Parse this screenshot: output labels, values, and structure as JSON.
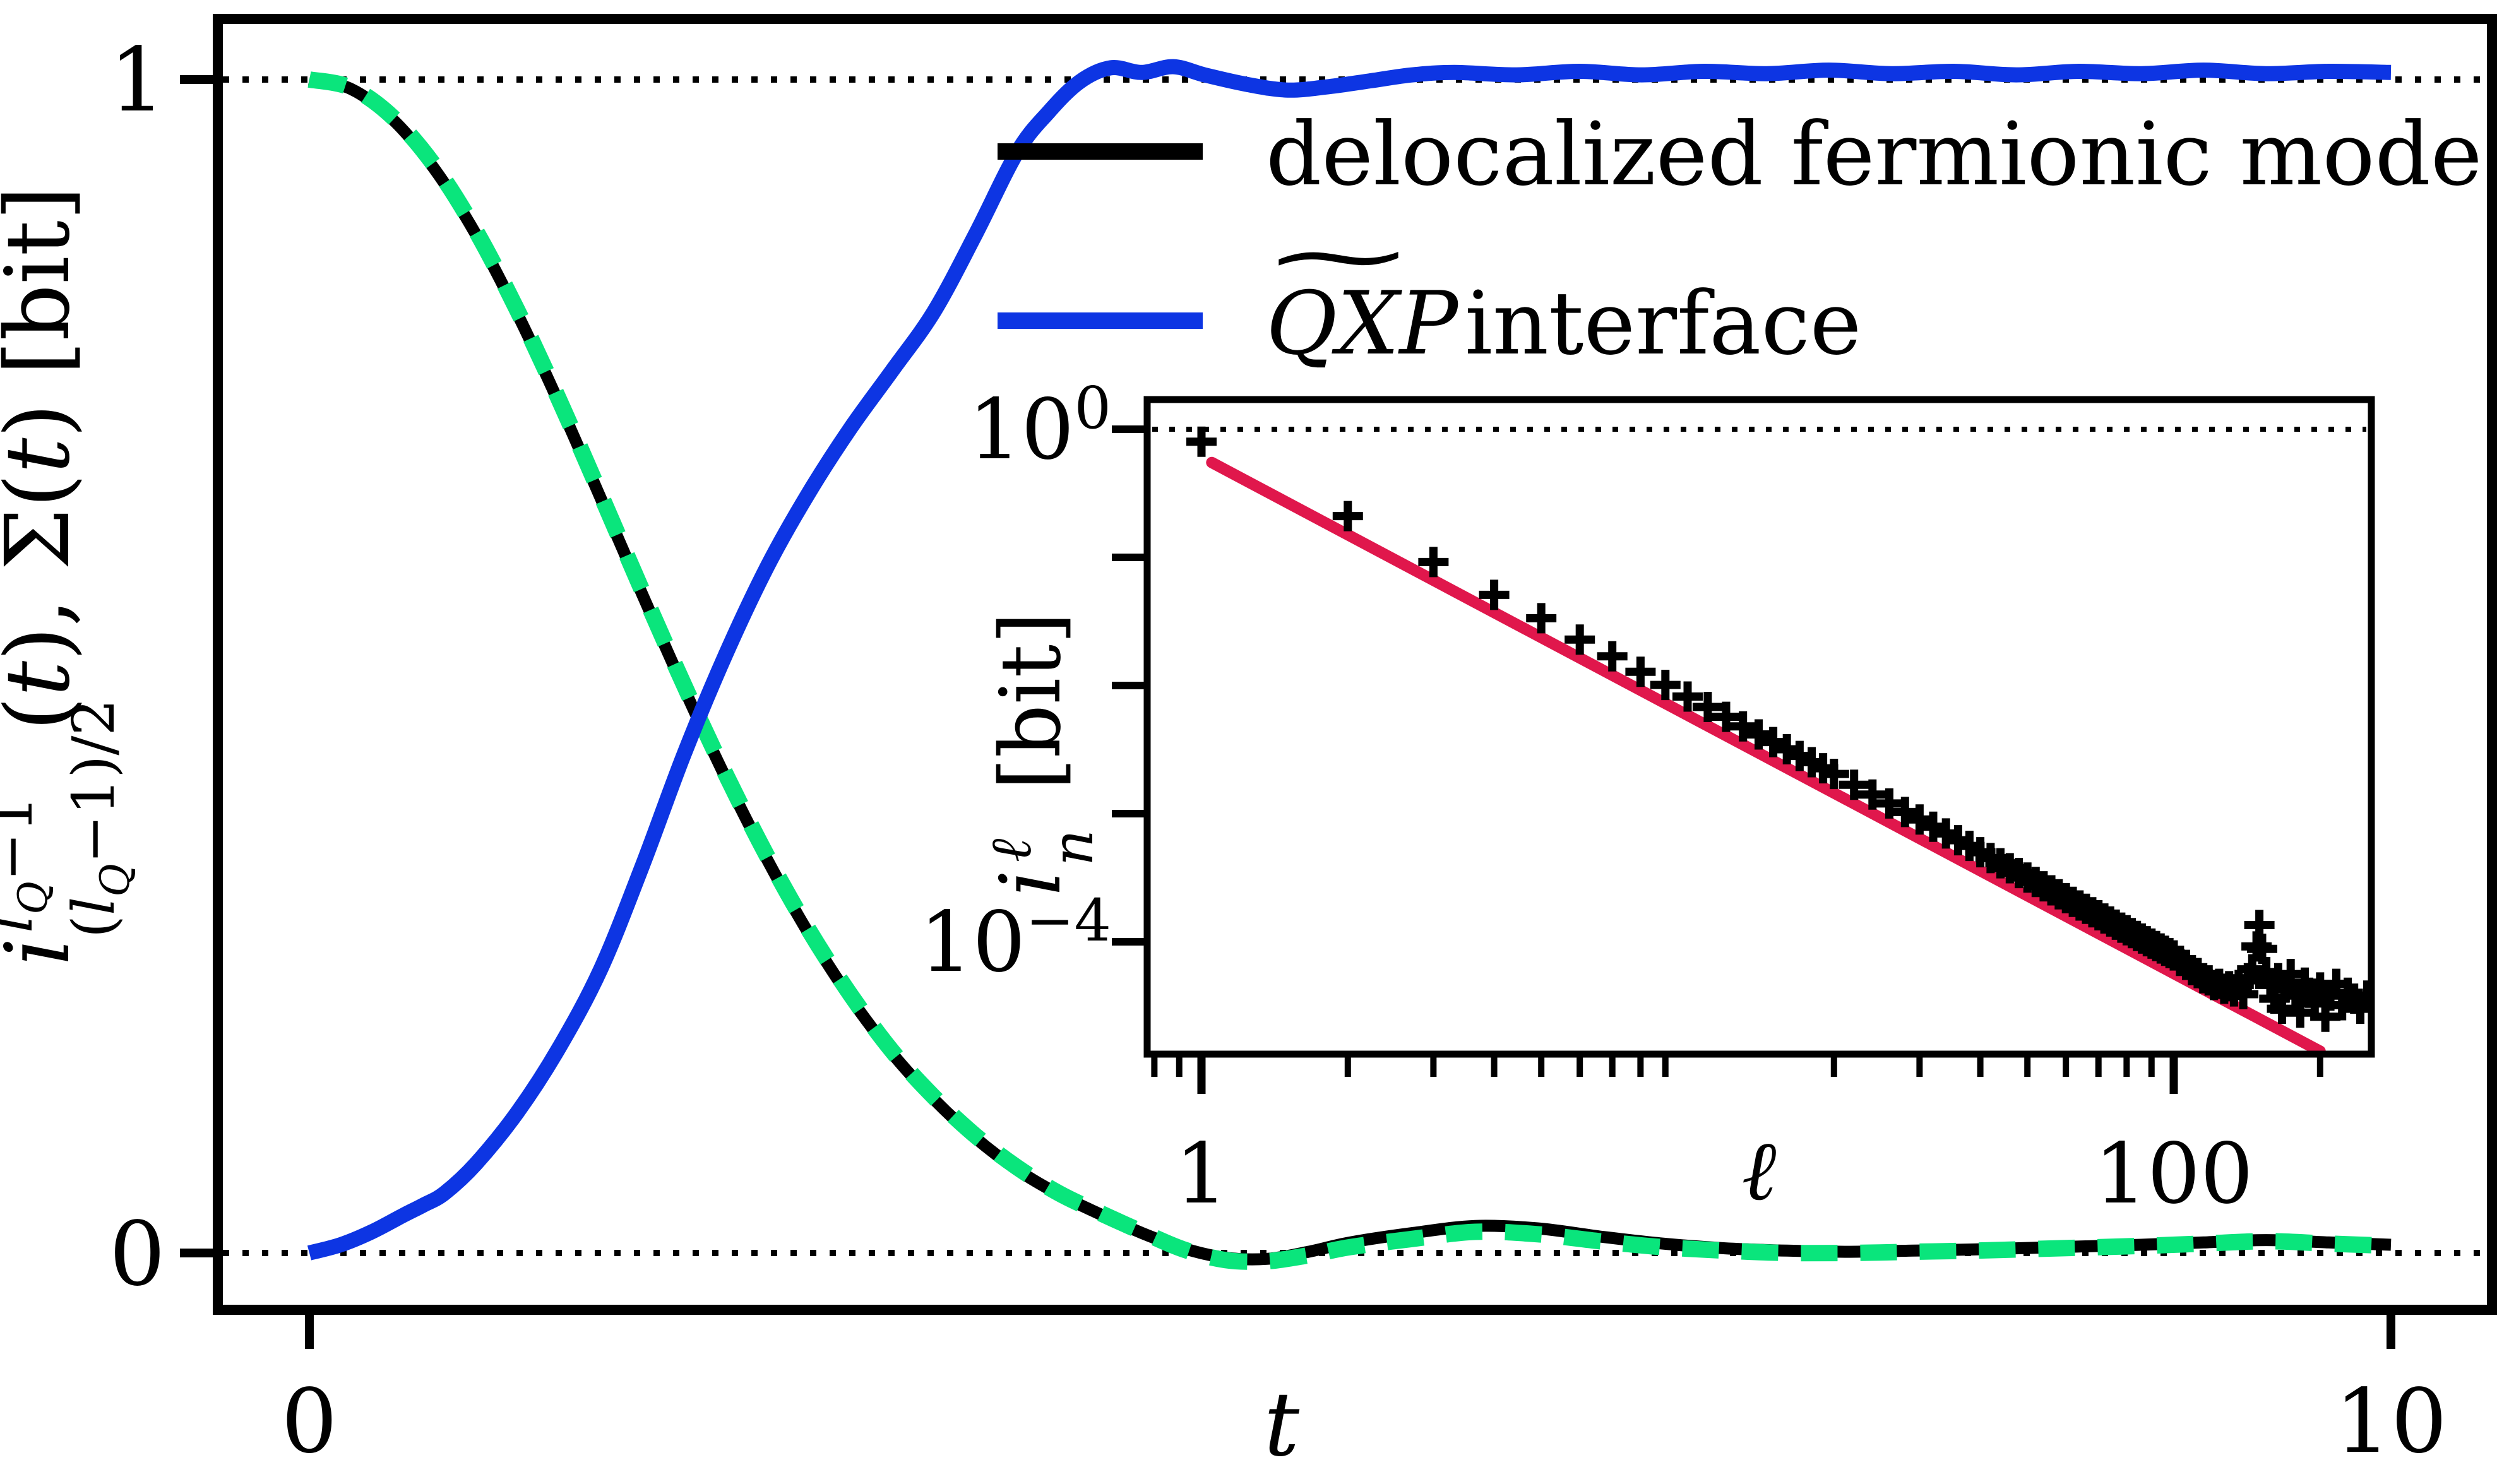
{
  "figure": {
    "background": "#ffffff",
    "frame_color": "#000000"
  },
  "colors": {
    "delocalized_mode": "#000000",
    "sigma_dashed": "#0ae57c",
    "qxp_interface": "#0d35e3",
    "fit_line_red": "#e0174c",
    "reference_dotted": "#000000"
  },
  "main_axis": {
    "xlabel": "t",
    "ylabel_latex": "i^{l_Q-1}_{(l_Q-1)/2}(t), Σ(t) [bit]",
    "ylabel_parts": {
      "core": "i",
      "sup_l": "l",
      "sup_q": "Q",
      "sup_rest": "−1",
      "sub_open": "(",
      "sub_l": "l",
      "sub_q": "Q",
      "sub_rest": "−1)/2",
      "tail_open": "(",
      "tail_t1": "t",
      "tail_mid": "), Σ(",
      "tail_t2": "t",
      "tail_close": ") [bit]"
    },
    "x_tick_labels": [
      "0",
      "10"
    ],
    "y_tick_labels": [
      "1",
      "0"
    ]
  },
  "legend": [
    {
      "label": "delocalized fermionic mode",
      "color": "#000000",
      "style": "solid"
    },
    {
      "math": "QXP",
      "accent": "∼",
      "suffix": "interface",
      "color": "#0d35e3",
      "style": "solid"
    }
  ],
  "inset_axis": {
    "xlabel": "ℓ",
    "ylabel_parts": {
      "core": "i",
      "sup": "ℓ",
      "sub": "n",
      "tail": "[bit]"
    },
    "x_tick_labels": [
      "1",
      "100"
    ],
    "y_tick_labels_rich": [
      {
        "base": "10",
        "exp": "0"
      },
      {
        "base": "10",
        "exp": "−4"
      }
    ]
  },
  "chart_data": [
    {
      "type": "line",
      "title": "",
      "xlabel": "t",
      "ylabel": "i^{l_Q-1}_{(l_Q-1)/2}(t), Σ(t) [bit]",
      "xlim": [
        -0.44,
        10.49
      ],
      "ylim": [
        -0.048,
        1.052
      ],
      "x_ticks": [
        0,
        10
      ],
      "y_ticks": [
        1,
        0
      ],
      "grid": false,
      "reference_hlines": [
        1,
        0
      ],
      "legend_position": "upper-right-no-frame",
      "series": [
        {
          "name": "delocalized fermionic mode",
          "color": "#000000",
          "style": "solid",
          "width": 19,
          "points": [
            [
              0,
              1.0
            ],
            [
              0.2,
              0.992
            ],
            [
              0.4,
              0.966
            ],
            [
              0.6,
              0.924
            ],
            [
              0.8,
              0.868
            ],
            [
              1.0,
              0.8
            ],
            [
              1.2,
              0.724
            ],
            [
              1.4,
              0.643
            ],
            [
              1.6,
              0.561
            ],
            [
              1.8,
              0.481
            ],
            [
              2.0,
              0.405
            ],
            [
              2.2,
              0.335
            ],
            [
              2.4,
              0.272
            ],
            [
              2.6,
              0.217
            ],
            [
              2.8,
              0.17
            ],
            [
              3.0,
              0.131
            ],
            [
              3.2,
              0.098
            ],
            [
              3.4,
              0.071
            ],
            [
              3.6,
              0.05
            ],
            [
              3.8,
              0.033
            ],
            [
              4.0,
              0.017
            ],
            [
              4.2,
              0.004
            ],
            [
              4.4,
              -0.004
            ],
            [
              4.6,
              -0.005
            ],
            [
              4.8,
              0.001
            ],
            [
              5.0,
              0.009
            ],
            [
              5.3,
              0.017
            ],
            [
              5.6,
              0.023
            ],
            [
              5.9,
              0.021
            ],
            [
              6.2,
              0.014
            ],
            [
              6.5,
              0.008
            ],
            [
              6.8,
              0.004
            ],
            [
              7.1,
              0.002
            ],
            [
              7.4,
              0.001
            ],
            [
              7.7,
              0.002
            ],
            [
              8.0,
              0.003
            ],
            [
              8.4,
              0.005
            ],
            [
              8.8,
              0.007
            ],
            [
              9.1,
              0.009
            ],
            [
              9.4,
              0.011
            ],
            [
              9.7,
              0.009
            ],
            [
              10,
              0.007
            ]
          ]
        },
        {
          "name": "Σ(t) (unlabeled green dashed overlay)",
          "color": "#0ae57c",
          "style": "dashed",
          "width": 26,
          "dash": [
            58,
            36
          ],
          "points": [
            [
              0,
              1.0
            ],
            [
              0.2,
              0.993
            ],
            [
              0.4,
              0.968
            ],
            [
              0.6,
              0.927
            ],
            [
              0.8,
              0.871
            ],
            [
              1.0,
              0.803
            ],
            [
              1.2,
              0.727
            ],
            [
              1.4,
              0.646
            ],
            [
              1.6,
              0.564
            ],
            [
              1.8,
              0.484
            ],
            [
              2.0,
              0.408
            ],
            [
              2.2,
              0.338
            ],
            [
              2.4,
              0.275
            ],
            [
              2.6,
              0.22
            ],
            [
              2.8,
              0.172
            ],
            [
              3.0,
              0.133
            ],
            [
              3.2,
              0.1
            ],
            [
              3.4,
              0.073
            ],
            [
              3.6,
              0.051
            ],
            [
              3.8,
              0.034
            ],
            [
              4.0,
              0.018
            ],
            [
              4.2,
              0.003
            ],
            [
              4.4,
              -0.006
            ],
            [
              4.6,
              -0.007
            ],
            [
              4.8,
              -0.002
            ],
            [
              5.0,
              0.005
            ],
            [
              5.3,
              0.012
            ],
            [
              5.6,
              0.018
            ],
            [
              5.9,
              0.016
            ],
            [
              6.2,
              0.01
            ],
            [
              6.5,
              0.005
            ],
            [
              6.8,
              0.002
            ],
            [
              7.1,
              0.0
            ],
            [
              7.4,
              0.0
            ],
            [
              7.7,
              0.001
            ],
            [
              8.0,
              0.002
            ],
            [
              8.4,
              0.004
            ],
            [
              8.8,
              0.006
            ],
            [
              9.1,
              0.008
            ],
            [
              9.4,
              0.01
            ],
            [
              9.7,
              0.008
            ],
            [
              10,
              0.006
            ]
          ]
        },
        {
          "name": "QXP interface",
          "color": "#0d35e3",
          "style": "solid",
          "width": 24,
          "points": [
            [
              0,
              0.0
            ],
            [
              0.15,
              0.007
            ],
            [
              0.3,
              0.018
            ],
            [
              0.45,
              0.032
            ],
            [
              0.55,
              0.041
            ],
            [
              0.65,
              0.051
            ],
            [
              0.8,
              0.076
            ],
            [
              1.0,
              0.12
            ],
            [
              1.2,
              0.175
            ],
            [
              1.4,
              0.242
            ],
            [
              1.6,
              0.33
            ],
            [
              1.8,
              0.425
            ],
            [
              2.0,
              0.51
            ],
            [
              2.2,
              0.585
            ],
            [
              2.4,
              0.648
            ],
            [
              2.6,
              0.703
            ],
            [
              2.8,
              0.752
            ],
            [
              3.0,
              0.802
            ],
            [
              3.2,
              0.868
            ],
            [
              3.4,
              0.938
            ],
            [
              3.55,
              0.972
            ],
            [
              3.7,
              0.998
            ],
            [
              3.85,
              1.01
            ],
            [
              4.0,
              1.006
            ],
            [
              4.15,
              1.011
            ],
            [
              4.3,
              1.004
            ],
            [
              4.5,
              0.996
            ],
            [
              4.7,
              0.991
            ],
            [
              4.9,
              0.994
            ],
            [
              5.1,
              0.999
            ],
            [
              5.3,
              1.004
            ],
            [
              5.5,
              1.006
            ],
            [
              5.8,
              1.004
            ],
            [
              6.1,
              1.007
            ],
            [
              6.4,
              1.004
            ],
            [
              6.7,
              1.007
            ],
            [
              7.0,
              1.005
            ],
            [
              7.3,
              1.008
            ],
            [
              7.6,
              1.005
            ],
            [
              7.9,
              1.007
            ],
            [
              8.2,
              1.004
            ],
            [
              8.5,
              1.007
            ],
            [
              8.8,
              1.005
            ],
            [
              9.1,
              1.008
            ],
            [
              9.4,
              1.005
            ],
            [
              9.7,
              1.007
            ],
            [
              10,
              1.006
            ]
          ]
        }
      ]
    },
    {
      "type": "scatter",
      "title": "",
      "xlabel": "ℓ",
      "ylabel": "i_n^ℓ [bit]",
      "xscale": "log",
      "yscale": "log",
      "xlim": [
        0.77,
        255
      ],
      "ylim": [
        1.32e-05,
        1.7
      ],
      "x_ticks": [
        1,
        100
      ],
      "y_ticks": [
        1,
        0.1,
        0.01,
        0.001,
        0.0001
      ],
      "reference_hlines": [
        1
      ],
      "marker": "+",
      "marker_color": "#000000",
      "points": [
        [
          1,
          0.8
        ],
        [
          2,
          0.21
        ],
        [
          3,
          0.092
        ],
        [
          4,
          0.051
        ],
        [
          5,
          0.0335
        ],
        [
          6,
          0.0228
        ],
        [
          7,
          0.0169
        ],
        [
          8,
          0.0128
        ],
        [
          9,
          0.0101
        ],
        [
          10,
          0.0082
        ],
        [
          11,
          0.0068
        ],
        [
          12,
          0.0057
        ],
        [
          13,
          0.0048
        ],
        [
          14,
          0.00415
        ],
        [
          15,
          0.00362
        ],
        [
          16,
          0.00318
        ],
        [
          17,
          0.00282
        ],
        [
          18,
          0.00252
        ],
        [
          19,
          0.00226
        ],
        [
          20,
          0.00204
        ],
        [
          22,
          0.00168
        ],
        [
          24,
          0.00141
        ],
        [
          26,
          0.0012
        ],
        [
          28,
          0.00103
        ],
        [
          30,
          0.0009
        ],
        [
          32,
          0.00079
        ],
        [
          34,
          0.0007
        ],
        [
          36,
          0.00062
        ],
        [
          38,
          0.00056
        ],
        [
          40,
          0.0005
        ],
        [
          42,
          0.00045
        ],
        [
          44,
          0.00041
        ],
        [
          46,
          0.000375
        ],
        [
          48,
          0.000344
        ],
        [
          50,
          0.000317
        ],
        [
          52,
          0.000293
        ],
        [
          54,
          0.000271
        ],
        [
          56,
          0.000252
        ],
        [
          58,
          0.000235
        ],
        [
          60,
          0.000219
        ],
        [
          62,
          0.000205
        ],
        [
          64,
          0.000192
        ],
        [
          66,
          0.000181
        ],
        [
          68,
          0.00017
        ],
        [
          70,
          0.000161
        ],
        [
          72,
          0.000152
        ],
        [
          74,
          0.000144
        ],
        [
          76,
          0.000136
        ],
        [
          78,
          0.000129
        ],
        [
          80,
          0.000123
        ],
        [
          82,
          0.000117
        ],
        [
          84,
          0.000111
        ],
        [
          86,
          0.000106
        ],
        [
          88,
          0.000101
        ],
        [
          90,
          9.68e-05
        ],
        [
          92,
          9.26e-05
        ],
        [
          94,
          8.87e-05
        ],
        [
          96,
          8.5e-05
        ],
        [
          98,
          8.15e-05
        ],
        [
          100,
          7.83e-05
        ],
        [
          103,
          7.1e-05
        ],
        [
          106,
          6.6e-05
        ],
        [
          109,
          6e-05
        ],
        [
          112,
          5.7e-05
        ],
        [
          115,
          5.2e-05
        ],
        [
          118,
          5e-05
        ],
        [
          121,
          4.6e-05
        ],
        [
          124,
          4.7e-05
        ],
        [
          127,
          4.3e-05
        ],
        [
          130,
          4.5e-05
        ],
        [
          133,
          4.1e-05
        ],
        [
          136,
          4.6e-05
        ],
        [
          139,
          3.9e-05
        ],
        [
          142,
          5.2e-05
        ],
        [
          145,
          6.1e-05
        ],
        [
          148,
          9.2e-05
        ],
        [
          150,
          0.000135
        ],
        [
          152,
          8.8e-05
        ],
        [
          155,
          5.8e-05
        ],
        [
          158,
          4.6e-05
        ],
        [
          161,
          3.6e-05
        ],
        [
          164,
          5.2e-05
        ],
        [
          167,
          3e-05
        ],
        [
          170,
          4.4e-05
        ],
        [
          174,
          5.6e-05
        ],
        [
          178,
          3.8e-05
        ],
        [
          182,
          2.8e-05
        ],
        [
          186,
          4.8e-05
        ],
        [
          190,
          4e-05
        ],
        [
          195,
          3.3e-05
        ],
        [
          200,
          4.4e-05
        ],
        [
          205,
          2.6e-05
        ],
        [
          210,
          3.8e-05
        ],
        [
          216,
          4.7e-05
        ],
        [
          222,
          3.2e-05
        ],
        [
          228,
          4e-05
        ],
        [
          235,
          3.6e-05
        ],
        [
          242,
          3e-05
        ],
        [
          250,
          3.8e-05
        ]
      ],
      "fit_line": {
        "color": "#e0174c",
        "width": 18,
        "x1": 1.05,
        "y1": 0.55,
        "x2": 200,
        "y2": 1.4e-05,
        "power_law_slope": -2.0
      }
    }
  ]
}
